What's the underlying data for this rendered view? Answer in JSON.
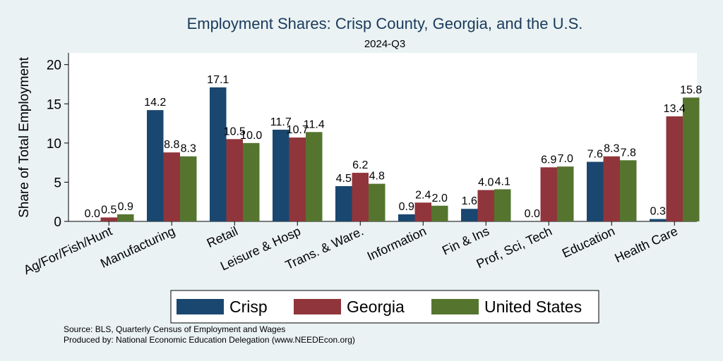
{
  "chart_data": {
    "type": "bar",
    "title": "Employment Shares: Crisp County, Georgia, and the U.S.",
    "subtitle": "2024-Q3",
    "ylabel": "Share of Total Employment",
    "ylim": [
      0,
      21.5
    ],
    "yticks": [
      0,
      5,
      10,
      15,
      20
    ],
    "categories": [
      "Ag/For/Fish/Hunt",
      "Manufacturing",
      "Retail",
      "Leisure & Hosp",
      "Trans. & Ware.",
      "Information",
      "Fin & Ins",
      "Prof, Sci, Tech",
      "Education",
      "Health Care"
    ],
    "series": [
      {
        "name": "Crisp",
        "color": "#1a476f",
        "values": [
          0.0,
          14.2,
          17.1,
          11.7,
          4.5,
          0.9,
          1.6,
          0.0,
          7.6,
          0.3
        ],
        "labels": [
          "0.0",
          "14.2",
          "17.1",
          "11.7",
          "4.5",
          "0.9",
          "1.6",
          "0.0",
          "7.6",
          "0.3"
        ]
      },
      {
        "name": "Georgia",
        "color": "#90353b",
        "values": [
          0.5,
          8.8,
          10.5,
          10.7,
          6.2,
          2.4,
          4.0,
          6.9,
          8.3,
          13.4
        ],
        "labels": [
          "0.5",
          "8.8",
          "10.5",
          "10.7",
          "6.2",
          "2.4",
          "4.0",
          "6.9",
          "8.3",
          "13.4"
        ]
      },
      {
        "name": "United States",
        "color": "#55752f",
        "values": [
          0.9,
          8.3,
          10.0,
          11.4,
          4.8,
          2.0,
          4.1,
          7.0,
          7.8,
          15.8
        ],
        "labels": [
          "0.9",
          "8.3",
          "10.0",
          "11.4",
          "4.8",
          "2.0",
          "4.1",
          "7.0",
          "7.8",
          "15.8"
        ]
      }
    ],
    "legend": "bottom",
    "grid": false
  },
  "footer": {
    "source": "Source: BLS, Quarterly Census of Employment and Wages",
    "produced": "Produced by: National Economic Education Delegation (www.NEEDEcon.org)"
  }
}
